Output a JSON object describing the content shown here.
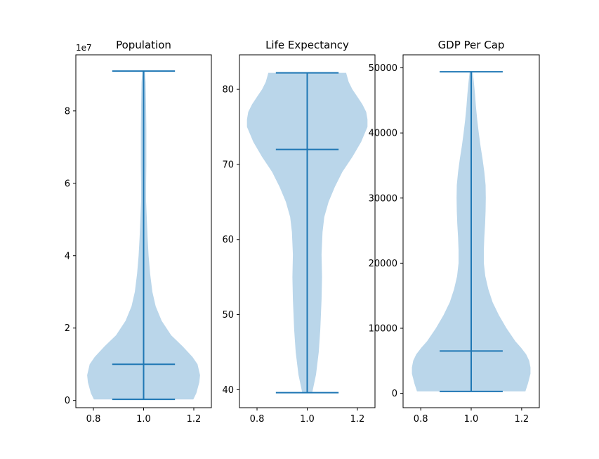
{
  "chart_data": [
    {
      "type": "violin",
      "title": "Population",
      "offset_label": "1e7",
      "ylim": [
        -2000000,
        95500000
      ],
      "xlim": [
        0.73,
        1.27
      ],
      "yticks": [
        {
          "value": 0,
          "label": "0"
        },
        {
          "value": 20000000,
          "label": "2"
        },
        {
          "value": 40000000,
          "label": "4"
        },
        {
          "value": 60000000,
          "label": "6"
        },
        {
          "value": 80000000,
          "label": "8"
        }
      ],
      "xticks": [
        {
          "value": 0.8,
          "label": "0.8"
        },
        {
          "value": 1.0,
          "label": "1.0"
        },
        {
          "value": 1.2,
          "label": "1.2"
        }
      ],
      "position": 1.0,
      "min": 300000,
      "median": 10000000,
      "max": 91000000,
      "density": [
        [
          300000,
          0.198
        ],
        [
          2000000,
          0.21
        ],
        [
          5000000,
          0.222
        ],
        [
          7000000,
          0.225
        ],
        [
          10000000,
          0.215
        ],
        [
          12000000,
          0.195
        ],
        [
          15000000,
          0.155
        ],
        [
          18000000,
          0.11
        ],
        [
          22000000,
          0.072
        ],
        [
          26000000,
          0.048
        ],
        [
          30000000,
          0.035
        ],
        [
          35000000,
          0.026
        ],
        [
          40000000,
          0.02
        ],
        [
          45000000,
          0.016
        ],
        [
          50000000,
          0.013
        ],
        [
          55000000,
          0.01
        ],
        [
          60000000,
          0.01
        ],
        [
          65000000,
          0.011
        ],
        [
          70000000,
          0.011
        ],
        [
          75000000,
          0.011
        ],
        [
          80000000,
          0.01
        ],
        [
          85000000,
          0.009
        ],
        [
          88000000,
          0.008
        ],
        [
          91000000,
          0.005
        ]
      ]
    },
    {
      "type": "violin",
      "title": "Life Expectancy",
      "offset_label": "",
      "ylim": [
        37.6,
        84.6
      ],
      "xlim": [
        0.73,
        1.27
      ],
      "yticks": [
        {
          "value": 40,
          "label": "40"
        },
        {
          "value": 50,
          "label": "50"
        },
        {
          "value": 60,
          "label": "60"
        },
        {
          "value": 70,
          "label": "70"
        },
        {
          "value": 80,
          "label": "80"
        }
      ],
      "xticks": [
        {
          "value": 0.8,
          "label": "0.8"
        },
        {
          "value": 1.0,
          "label": "1.0"
        },
        {
          "value": 1.2,
          "label": "1.2"
        }
      ],
      "position": 1.0,
      "min": 39.6,
      "median": 72.0,
      "max": 82.2,
      "density": [
        [
          39.6,
          0.02
        ],
        [
          42,
          0.035
        ],
        [
          45,
          0.046
        ],
        [
          48,
          0.052
        ],
        [
          52,
          0.057
        ],
        [
          55,
          0.059
        ],
        [
          58,
          0.057
        ],
        [
          61,
          0.061
        ],
        [
          63,
          0.068
        ],
        [
          65,
          0.085
        ],
        [
          67,
          0.11
        ],
        [
          69,
          0.14
        ],
        [
          71,
          0.18
        ],
        [
          73,
          0.215
        ],
        [
          75,
          0.24
        ],
        [
          76,
          0.24
        ],
        [
          77,
          0.235
        ],
        [
          78,
          0.22
        ],
        [
          79,
          0.2
        ],
        [
          80,
          0.18
        ],
        [
          81,
          0.165
        ],
        [
          82.2,
          0.155
        ]
      ]
    },
    {
      "type": "violin",
      "title": "GDP Per Cap",
      "offset_label": "",
      "ylim": [
        -2200,
        52000
      ],
      "xlim": [
        0.73,
        1.27
      ],
      "yticks": [
        {
          "value": 0,
          "label": "0"
        },
        {
          "value": 10000,
          "label": "10000"
        },
        {
          "value": 20000,
          "label": "20000"
        },
        {
          "value": 30000,
          "label": "30000"
        },
        {
          "value": 40000,
          "label": "40000"
        },
        {
          "value": 50000,
          "label": "50000"
        }
      ],
      "xticks": [
        {
          "value": 0.8,
          "label": "0.8"
        },
        {
          "value": 1.0,
          "label": "1.0"
        },
        {
          "value": 1.2,
          "label": "1.2"
        }
      ],
      "position": 1.0,
      "min": 300,
      "median": 6500,
      "max": 49400,
      "density": [
        [
          300,
          0.215
        ],
        [
          1500,
          0.225
        ],
        [
          3000,
          0.235
        ],
        [
          4000,
          0.235
        ],
        [
          5000,
          0.23
        ],
        [
          6000,
          0.218
        ],
        [
          7000,
          0.198
        ],
        [
          8000,
          0.175
        ],
        [
          10000,
          0.14
        ],
        [
          12000,
          0.11
        ],
        [
          14000,
          0.085
        ],
        [
          16000,
          0.068
        ],
        [
          18000,
          0.056
        ],
        [
          20000,
          0.05
        ],
        [
          22000,
          0.05
        ],
        [
          24000,
          0.052
        ],
        [
          26000,
          0.055
        ],
        [
          28000,
          0.057
        ],
        [
          30000,
          0.058
        ],
        [
          32000,
          0.057
        ],
        [
          34000,
          0.052
        ],
        [
          36000,
          0.045
        ],
        [
          38000,
          0.037
        ],
        [
          40000,
          0.03
        ],
        [
          42000,
          0.024
        ],
        [
          44000,
          0.019
        ],
        [
          46000,
          0.015
        ],
        [
          48000,
          0.01
        ],
        [
          49400,
          0.006
        ]
      ]
    }
  ],
  "colors": {
    "violin_fill": "#bad6ea",
    "violin_line": "#1f77b4",
    "axis": "#000000",
    "background": "#ffffff"
  }
}
